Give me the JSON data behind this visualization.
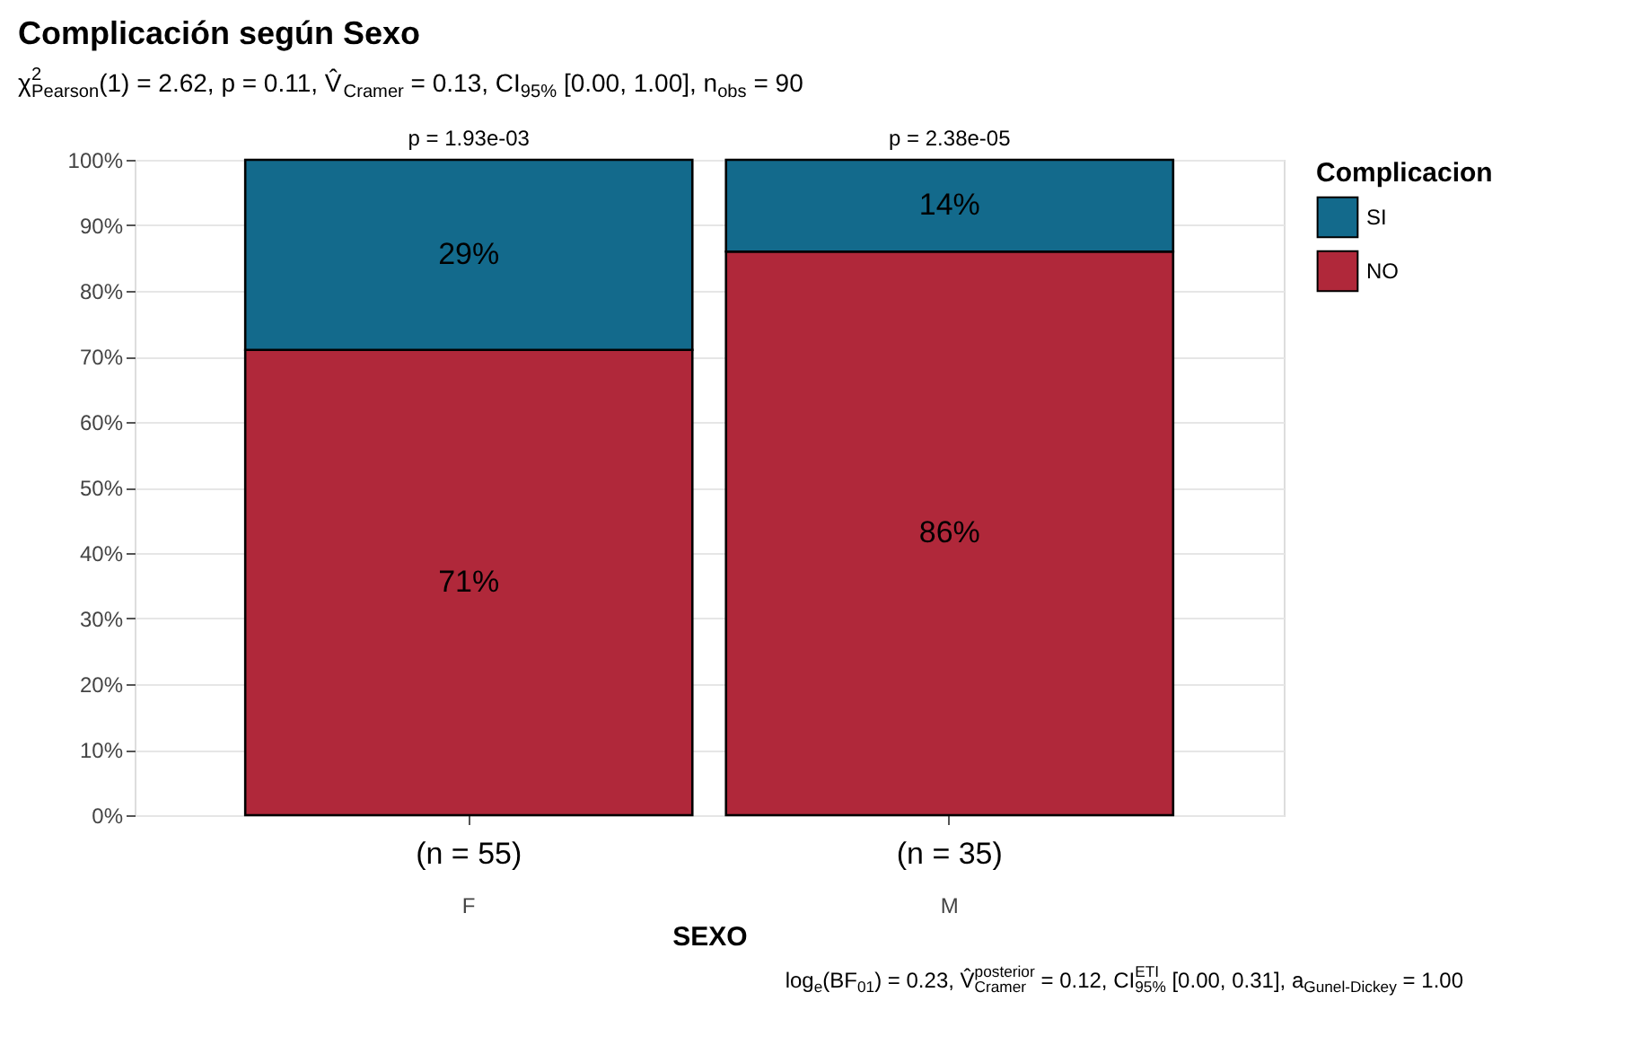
{
  "chart_data": {
    "type": "bar",
    "stacked": true,
    "title": "Complicación según Sexo",
    "subtitle": "χ$^{2}$$_{Pearson}$(1) = 2.62, p = 0.11, V̂$_{Cramer}$ = 0.13, CI$_{95%}$ [0.00, 1.00], n$_{obs}$ = 90",
    "categories": [
      "F",
      "M"
    ],
    "series": [
      {
        "name": "NO",
        "color": "#b0283a",
        "values": [
          71,
          86
        ],
        "value_labels": [
          "71%",
          "86%"
        ]
      },
      {
        "name": "SI",
        "color": "#136a8c",
        "values": [
          29,
          14
        ],
        "value_labels": [
          "29%",
          "14%"
        ]
      }
    ],
    "xlabel": "SEXO",
    "legend_title": "Complicacion",
    "legend": "right",
    "grid": "y",
    "ylim": [
      0,
      100
    ],
    "yticks": [
      {
        "value": 0,
        "label": "0%"
      },
      {
        "value": 10,
        "label": "10%"
      },
      {
        "value": 20,
        "label": "20%"
      },
      {
        "value": 30,
        "label": "30%"
      },
      {
        "value": 40,
        "label": "40%"
      },
      {
        "value": 50,
        "label": "50%"
      },
      {
        "value": 60,
        "label": "60%"
      },
      {
        "value": 70,
        "label": "70%"
      },
      {
        "value": 80,
        "label": "80%"
      },
      {
        "value": 90,
        "label": "90%"
      },
      {
        "value": 100,
        "label": "100%"
      }
    ],
    "annotations": [
      {
        "text": "p = 1.93e-03",
        "x": "F",
        "y": 100
      },
      {
        "text": "p = 2.38e-05",
        "x": "M",
        "y": 100
      },
      {
        "text": "(n = 55)",
        "x": "F",
        "y": 0
      },
      {
        "text": "(n = 35)",
        "x": "M",
        "y": 0
      },
      "log$_{e}$(BF$_{01}$) = 0.23, V̂$^{posterior}$$_{Cramer}$ = 0.12, CI$^{ETI}$$_{95%}$ [0.00, 0.31], a$_{Gunel-Dickey}$ = 1.00"
    ]
  }
}
